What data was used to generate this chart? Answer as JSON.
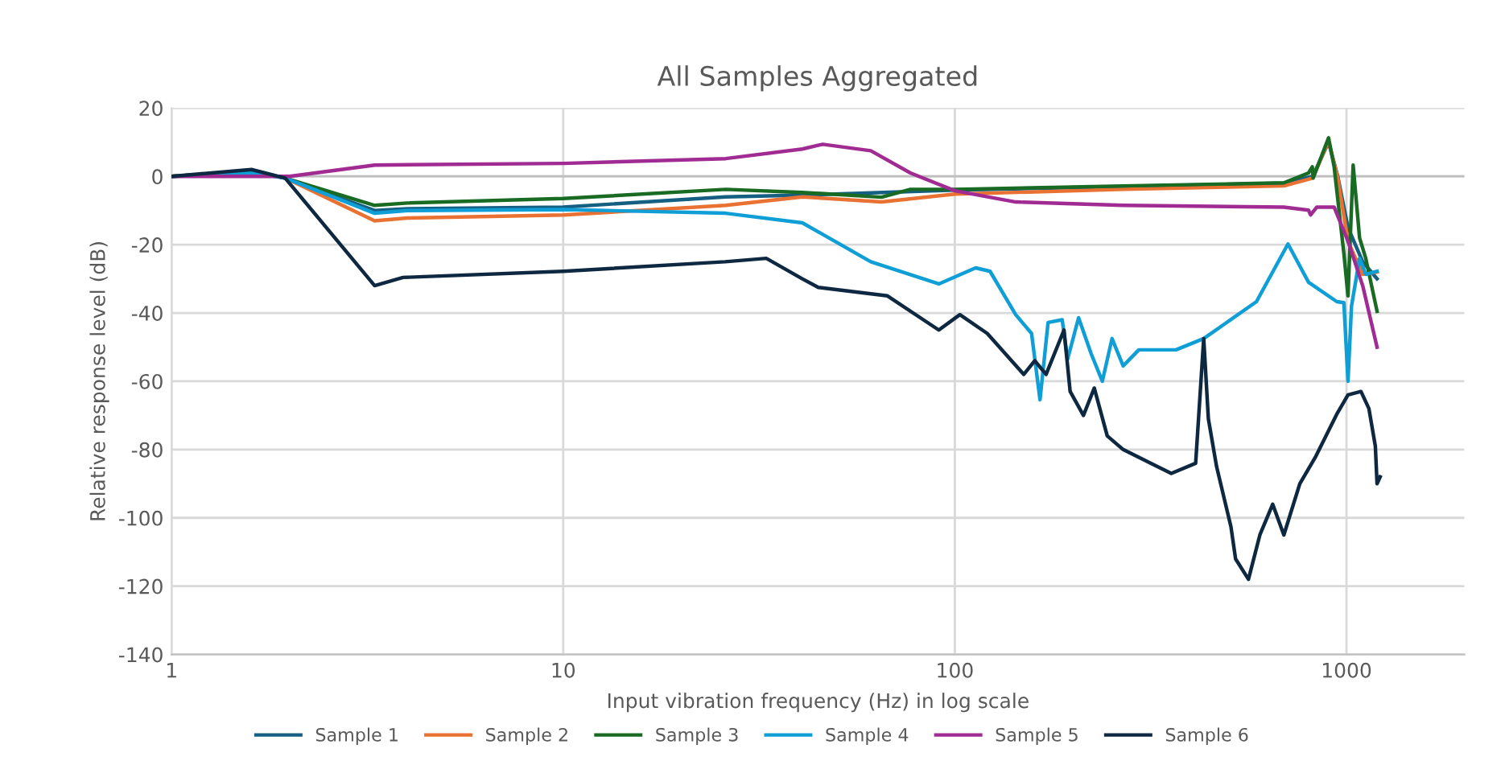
{
  "chart_data": {
    "type": "line",
    "title": "All Samples Aggregated",
    "xlabel": "Input vibration frequency (Hz) in log scale",
    "ylabel": "Relative response level (dB)",
    "log": "x",
    "xlim": [
      1,
      2000
    ],
    "xticks": [
      1,
      10,
      100,
      1000
    ],
    "ylim": [
      -140,
      20
    ],
    "yticks": [
      -140,
      -120,
      -100,
      -80,
      -60,
      -40,
      -20,
      0,
      20
    ],
    "grid": true,
    "legend": "bottom",
    "marker": "none",
    "line_style": "solid",
    "series": [
      {
        "name": "Sample 1",
        "color": "#156082",
        "x": [
          1,
          1.6,
          1.95,
          3.3,
          4,
          10,
          26,
          40.8,
          100,
          692,
          820,
          900,
          950,
          1009,
          1100,
          1197
        ],
        "values": [
          0,
          1.5,
          -0.5,
          -10,
          -9.5,
          -9,
          -6,
          -5.5,
          -4,
          -2,
          0,
          10,
          0,
          -15,
          -25,
          -30
        ]
      },
      {
        "name": "Sample 2",
        "color": "#e97132",
        "x": [
          1,
          1.6,
          1.95,
          3.3,
          4,
          10,
          26,
          40.8,
          65,
          100,
          269,
          692,
          820,
          900,
          950,
          1009,
          1100,
          1197
        ],
        "values": [
          0,
          1.5,
          -0.5,
          -13,
          -12.2,
          -11.3,
          -8.5,
          -6,
          -7.5,
          -5.2,
          -3.8,
          -2.8,
          -0.5,
          10.4,
          -0.5,
          -19,
          -28.7,
          -28
        ]
      },
      {
        "name": "Sample 3",
        "color": "#196b24",
        "x": [
          1,
          1.6,
          1.95,
          3.3,
          4,
          10,
          26,
          40.8,
          65,
          77,
          100,
          269,
          692,
          800,
          818,
          822,
          900,
          930,
          985,
          1009,
          1040,
          1080,
          1120,
          1197
        ],
        "values": [
          0,
          1.5,
          -0.5,
          -8.5,
          -7.8,
          -6.5,
          -3.8,
          -4.7,
          -6.1,
          -3.8,
          -3.8,
          -2.8,
          -1.9,
          1,
          2.8,
          -0.5,
          11.3,
          2.8,
          -22.6,
          -35,
          3.3,
          -18,
          -24,
          -39.5
        ]
      },
      {
        "name": "Sample 4",
        "color": "#0f9ed5",
        "x": [
          1,
          1.6,
          1.95,
          3.3,
          4,
          10,
          26,
          40.8,
          46,
          61,
          91,
          113,
          123,
          143,
          157,
          165,
          173,
          188,
          194,
          207,
          223,
          238,
          252,
          269,
          295,
          367,
          432,
          589,
          709,
          800,
          945,
          985,
          1009,
          1030,
          1080,
          1120,
          1197
        ],
        "values": [
          0,
          1,
          -0.5,
          -10.8,
          -10,
          -9.7,
          -10.8,
          -13.6,
          -17,
          -25,
          -31.5,
          -26.8,
          -27.8,
          -40.5,
          -46,
          -65.4,
          -42.8,
          -42,
          -53.6,
          -41.4,
          -52,
          -60,
          -47.5,
          -55.5,
          -50.8,
          -50.8,
          -47.5,
          -36.7,
          -19.8,
          -31,
          -36.7,
          -37,
          -60,
          -38,
          -24,
          -28.7,
          -27.8
        ]
      },
      {
        "name": "Sample 5",
        "color": "#a02b93",
        "x": [
          1,
          2,
          3.3,
          10,
          26,
          40.8,
          46,
          61,
          77,
          100,
          143,
          269,
          692,
          800,
          810,
          840,
          930,
          1009,
          1100,
          1197
        ],
        "values": [
          0,
          0,
          3.3,
          3.8,
          5.2,
          8,
          9.4,
          7.5,
          1,
          -4.2,
          -7.5,
          -8.5,
          -9,
          -9.9,
          -11.3,
          -9,
          -9,
          -19,
          -32,
          -50
        ]
      },
      {
        "name": "Sample 6",
        "color": "#0e2841",
        "x": [
          1,
          1.6,
          1.95,
          3.3,
          3.9,
          10,
          25.9,
          33,
          40.8,
          44.8,
          67.3,
          91,
          103,
          121,
          150,
          160,
          171,
          190,
          197,
          213,
          227,
          245,
          269,
          316,
          357,
          412,
          432,
          444,
          466,
          507,
          521,
          562,
          601,
          648,
          692,
          760,
          835,
          945,
          1009,
          1089,
          1141,
          1185,
          1197,
          1219
        ],
        "values": [
          0,
          2,
          -0.5,
          -32,
          -29.6,
          -27.8,
          -25,
          -24,
          -30,
          -32.5,
          -35,
          -45,
          -40.5,
          -46,
          -58,
          -54,
          -58,
          -45,
          -63,
          -70,
          -62,
          -76,
          -80,
          -84,
          -87,
          -84,
          -47.5,
          -71,
          -85,
          -102.6,
          -112,
          -118,
          -105,
          -96,
          -105,
          -90,
          -82,
          -69.6,
          -64,
          -63,
          -68,
          -79,
          -90,
          -88
        ]
      }
    ]
  }
}
